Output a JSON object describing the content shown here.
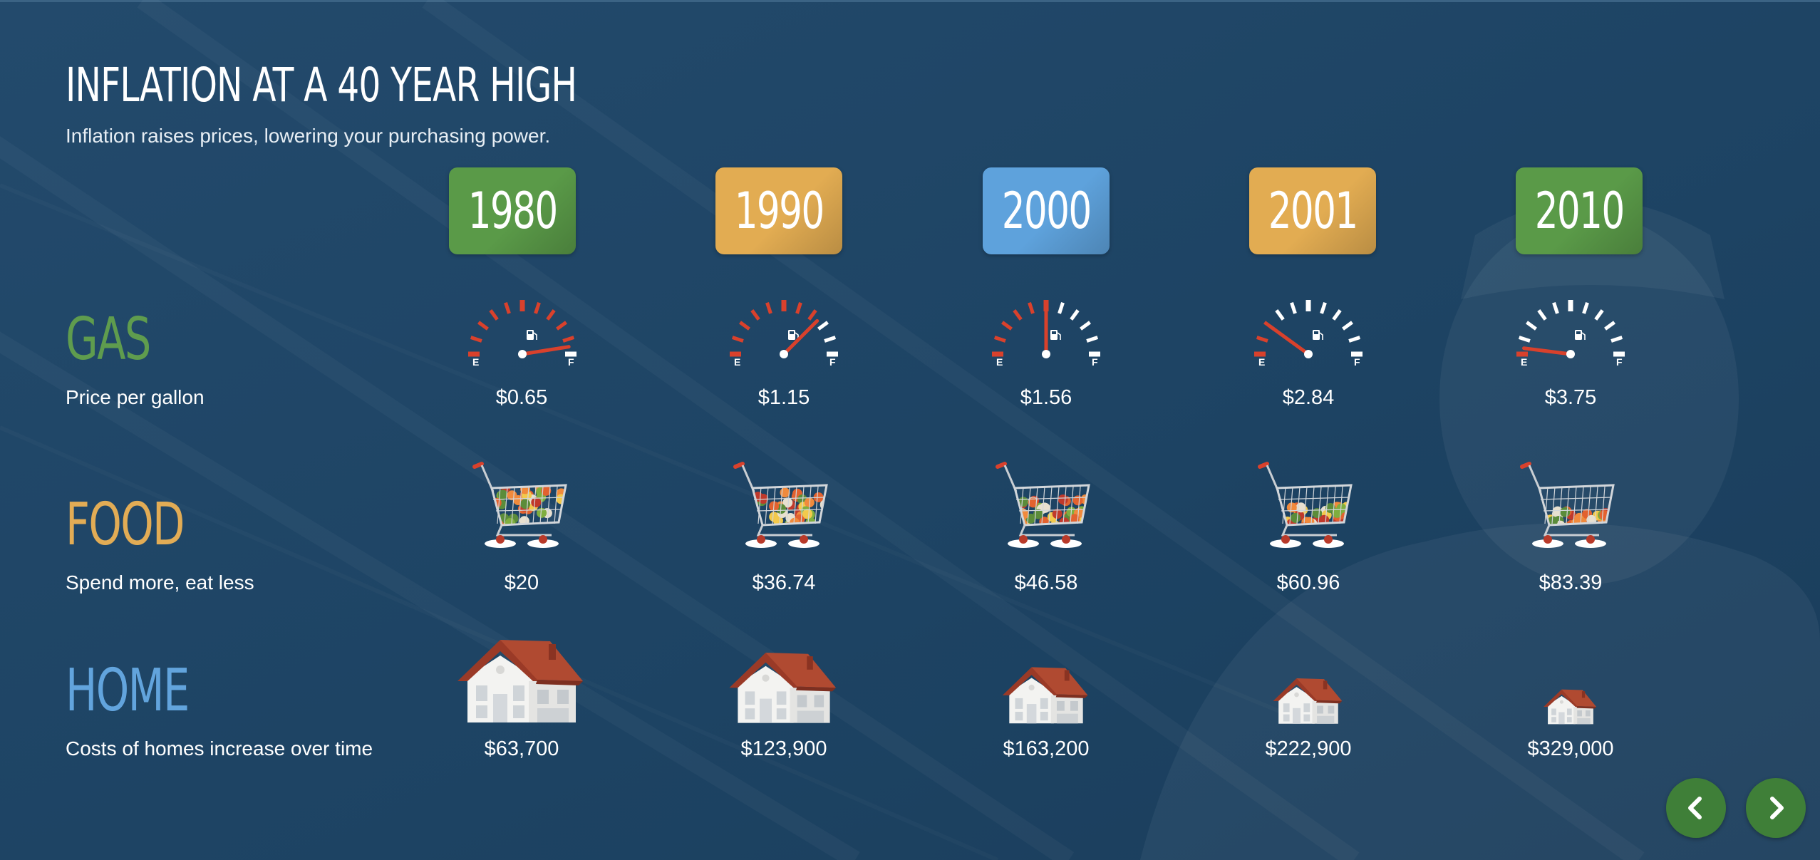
{
  "header": {
    "title": "INFLATION AT A 40 YEAR HIGH",
    "subtitle": "Inflation raises prices, lowering your purchasing power."
  },
  "years": [
    {
      "label": "1980",
      "color": "#5a9a48"
    },
    {
      "label": "1990",
      "color": "#e2ac52"
    },
    {
      "label": "2000",
      "color": "#5ea2dc"
    },
    {
      "label": "2001",
      "color": "#e2ac52"
    },
    {
      "label": "2010",
      "color": "#5a9a48"
    }
  ],
  "categories": {
    "gas": {
      "label": "GAS",
      "color": "#5f9c4e",
      "subtitle": "Price per gallon",
      "gauge_empty": "E",
      "gauge_full": "F",
      "gauge_fill_fraction": [
        0.95,
        0.75,
        0.5,
        0.2,
        0.04
      ],
      "values": [
        "$0.65",
        "$1.15",
        "$1.56",
        "$2.84",
        "$3.75"
      ]
    },
    "food": {
      "label": "FOOD",
      "color": "#e2ac55",
      "subtitle": "Spend more, eat less",
      "cart_fill_fraction": [
        1.0,
        0.85,
        0.65,
        0.5,
        0.35
      ],
      "values": [
        "$20",
        "$36.74",
        "$46.58",
        "$60.96",
        "$83.39"
      ]
    },
    "home": {
      "label": "HOME",
      "color": "#62a4dd",
      "subtitle": "Costs of homes increase over time",
      "house_scale": [
        1.0,
        0.85,
        0.68,
        0.55,
        0.42
      ],
      "values": [
        "$63,700",
        "$123,900",
        "$163,200",
        "$222,900",
        "$329,000"
      ]
    }
  },
  "icons": {
    "gauge": "fuel-gauge-icon",
    "cart": "shopping-cart-icon",
    "house": "house-icon",
    "prev": "chevron-left-icon",
    "next": "chevron-right-icon"
  },
  "nav": {
    "button_color": "#3f7f38"
  }
}
